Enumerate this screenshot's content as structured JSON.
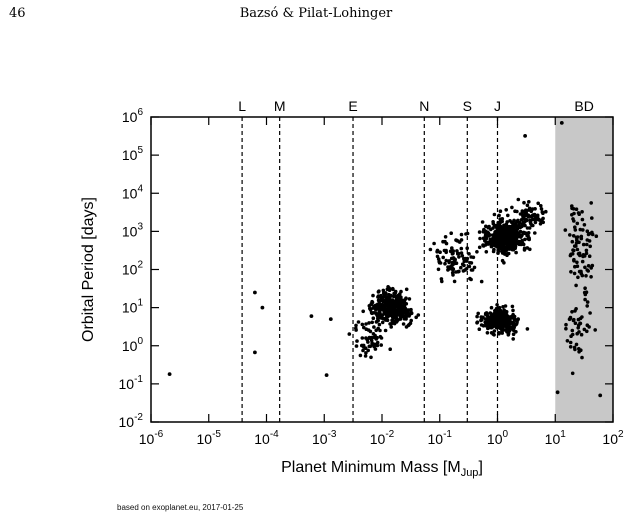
{
  "page": {
    "page_number": "46",
    "running_head": "Bazsó & Pilat-Lohinger",
    "footnote": "based on exoplanet.eu, 2017-01-25"
  },
  "chart_data": {
    "type": "scatter",
    "xlabel": "Planet Minimum Mass [M",
    "xlabel_sub": "Jup",
    "xlabel_close": "]",
    "ylabel": "Orbital Period [days]",
    "x_scale": "log",
    "y_scale": "log",
    "xlim": [
      1e-06,
      100
    ],
    "ylim": [
      0.01,
      1000000
    ],
    "x_ticks": [
      {
        "base": "10",
        "exp": "-6"
      },
      {
        "base": "10",
        "exp": "-5"
      },
      {
        "base": "10",
        "exp": "-4"
      },
      {
        "base": "10",
        "exp": "-3"
      },
      {
        "base": "10",
        "exp": "-2"
      },
      {
        "base": "10",
        "exp": "-1"
      },
      {
        "base": "10",
        "exp": "0"
      },
      {
        "base": "10",
        "exp": "1"
      },
      {
        "base": "10",
        "exp": "2"
      }
    ],
    "y_ticks": [
      {
        "base": "10",
        "exp": "-2"
      },
      {
        "base": "10",
        "exp": "-1"
      },
      {
        "base": "10",
        "exp": "0"
      },
      {
        "base": "10",
        "exp": "1"
      },
      {
        "base": "10",
        "exp": "2"
      },
      {
        "base": "10",
        "exp": "3"
      },
      {
        "base": "10",
        "exp": "4"
      },
      {
        "base": "10",
        "exp": "5"
      },
      {
        "base": "10",
        "exp": "6"
      }
    ],
    "reference_lines": [
      {
        "label": "L",
        "x": 3.78e-05
      },
      {
        "label": "M",
        "x": 0.000169
      },
      {
        "label": "E",
        "x": 0.00315
      },
      {
        "label": "N",
        "x": 0.054
      },
      {
        "label": "S",
        "x": 0.3
      },
      {
        "label": "J",
        "x": 1.0
      }
    ],
    "shaded_region": {
      "label": "BD",
      "x_from": 10,
      "x_to": 100,
      "color": "#c8c8c8"
    },
    "grid": false,
    "point_color": "#000000",
    "notable_points": [
      {
        "x": 2.1e-06,
        "y": 0.18
      },
      {
        "x": 6.3e-05,
        "y": 25
      },
      {
        "x": 6.3e-05,
        "y": 0.67
      },
      {
        "x": 8.5e-05,
        "y": 10
      },
      {
        "x": 0.0006,
        "y": 6
      },
      {
        "x": 0.0011,
        "y": 0.17
      },
      {
        "x": 0.0013,
        "y": 5
      },
      {
        "x": 3.0,
        "y": 320000
      },
      {
        "x": 13,
        "y": 700000
      },
      {
        "x": 60,
        "y": 0.05
      },
      {
        "x": 11,
        "y": 0.06
      }
    ],
    "clusters": [
      {
        "x_log_center": -1.85,
        "y_log_center": 1.0,
        "x_log_spread": 0.35,
        "y_log_spread": 0.4,
        "count": 360
      },
      {
        "x_log_center": 0.05,
        "y_log_center": 0.65,
        "x_log_spread": 0.3,
        "y_log_spread": 0.3,
        "count": 330
      },
      {
        "x_log_center": 0.15,
        "y_log_center": 2.85,
        "x_log_spread": 0.35,
        "y_log_spread": 0.45,
        "count": 430
      },
      {
        "x_log_center": -0.7,
        "y_log_center": 2.3,
        "x_log_spread": 0.4,
        "y_log_spread": 0.6,
        "count": 100
      },
      {
        "x_log_center": -2.2,
        "y_log_center": 0.2,
        "x_log_spread": 0.3,
        "y_log_spread": 0.5,
        "count": 60
      },
      {
        "x_log_center": 1.45,
        "y_log_center": 2.6,
        "x_log_spread": 0.28,
        "y_log_spread": 1.2,
        "count": 90
      },
      {
        "x_log_center": 1.4,
        "y_log_center": 0.3,
        "x_log_spread": 0.28,
        "y_log_spread": 0.8,
        "count": 40
      },
      {
        "x_log_center": 0.6,
        "y_log_center": 3.4,
        "x_log_spread": 0.25,
        "y_log_spread": 0.35,
        "count": 80
      }
    ]
  }
}
